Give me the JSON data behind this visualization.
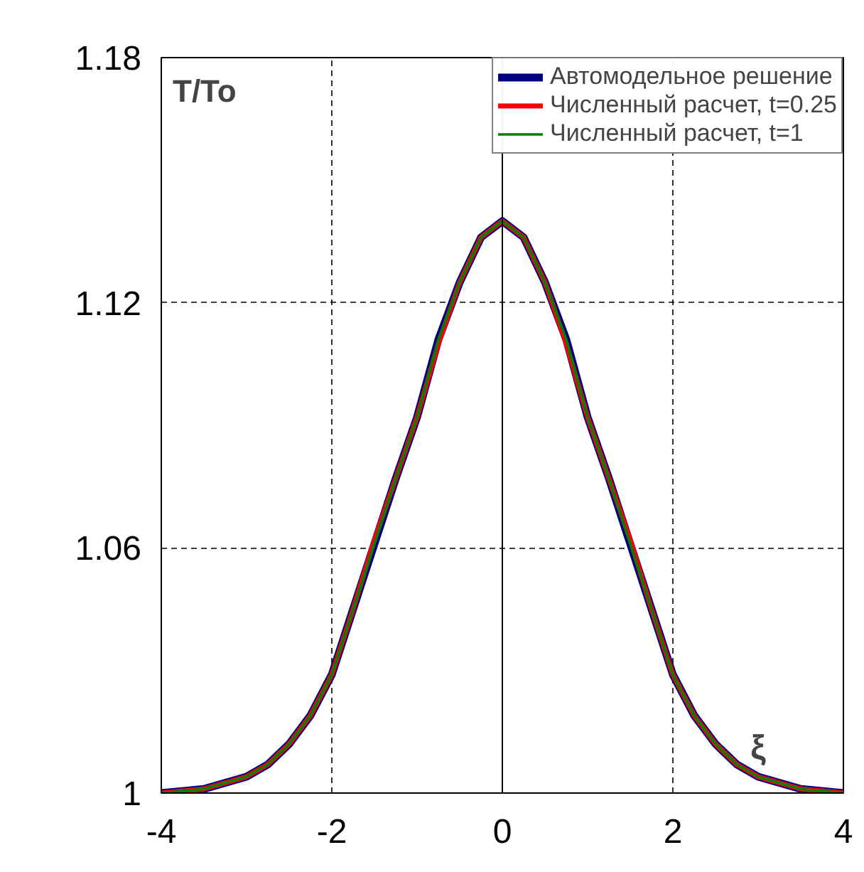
{
  "chart_data": {
    "type": "line",
    "xlabel": "ξ",
    "ylabel": "T/To",
    "x": [
      -4,
      -3.5,
      -3,
      -2.75,
      -2.5,
      -2.25,
      -2,
      -1.75,
      -1.5,
      -1.25,
      -1,
      -0.75,
      -0.5,
      -0.25,
      0,
      0.25,
      0.5,
      0.75,
      1,
      1.25,
      1.5,
      1.75,
      2,
      2.25,
      2.5,
      2.75,
      3,
      3.5,
      4
    ],
    "series": [
      {
        "name": "Автомодельное решение",
        "color": "#000080",
        "values": [
          1.0,
          1.001,
          1.004,
          1.007,
          1.012,
          1.019,
          1.029,
          1.045,
          1.061,
          1.077,
          1.092,
          1.111,
          1.125,
          1.136,
          1.14,
          1.136,
          1.125,
          1.111,
          1.092,
          1.077,
          1.061,
          1.045,
          1.029,
          1.019,
          1.012,
          1.007,
          1.004,
          1.001,
          1.0
        ]
      },
      {
        "name": "Численный расчет, t=0.25",
        "color": "#ff0000",
        "values": [
          1.0,
          1.001,
          1.004,
          1.007,
          1.012,
          1.019,
          1.029,
          1.045,
          1.062,
          1.077,
          1.092,
          1.11,
          1.125,
          1.136,
          1.14,
          1.136,
          1.125,
          1.11,
          1.092,
          1.077,
          1.062,
          1.045,
          1.029,
          1.019,
          1.012,
          1.007,
          1.004,
          1.001,
          1.0
        ]
      },
      {
        "name": "Численный расчет, t=1",
        "color": "#008000",
        "values": [
          1.0,
          1.001,
          1.004,
          1.007,
          1.012,
          1.019,
          1.029,
          1.045,
          1.061,
          1.077,
          1.092,
          1.111,
          1.125,
          1.136,
          1.14,
          1.136,
          1.125,
          1.111,
          1.092,
          1.077,
          1.061,
          1.045,
          1.029,
          1.019,
          1.012,
          1.007,
          1.004,
          1.001,
          1.0
        ]
      }
    ],
    "xlim": [
      -4,
      4
    ],
    "ylim": [
      1,
      1.18
    ],
    "xticks": [
      -4,
      -2,
      0,
      2,
      4
    ],
    "yticks": [
      1,
      1.06,
      1.12,
      1.18
    ],
    "grid": true,
    "legend": "top right",
    "marker": "none",
    "line_style": "solid"
  }
}
